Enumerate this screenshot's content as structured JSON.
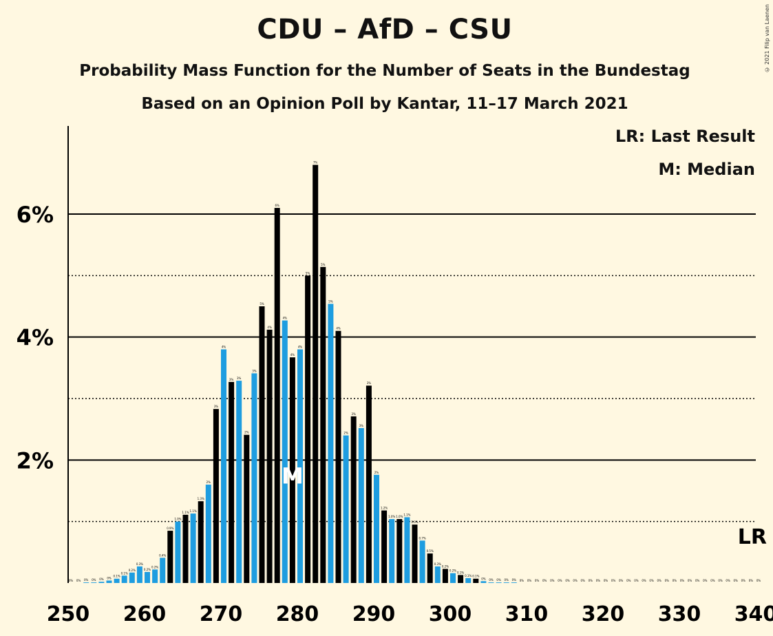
{
  "header": {
    "title": "CDU – AfD – CSU",
    "subtitle1": "Probability Mass Function for the Number of Seats in the Bundestag",
    "subtitle2": "Based on an Opinion Poll by Kantar, 11–17 March 2021",
    "copyright": "© 2021 Filip van Laenen"
  },
  "legend": {
    "lr": "LR: Last Result",
    "m": "M: Median"
  },
  "colors": {
    "background": "#FFF8E1",
    "bar_blue": "#1E9DE0",
    "bar_black": "#000000",
    "median_text": "#FFFFFF"
  },
  "chart_data": {
    "type": "bar",
    "title": "CDU – AfD – CSU",
    "x_ticks": [
      250,
      260,
      270,
      280,
      290,
      300,
      310,
      320,
      330,
      340
    ],
    "y_ticks": [
      {
        "value": 2,
        "label": "2%"
      },
      {
        "value": 4,
        "label": "4%"
      },
      {
        "value": 6,
        "label": "6%"
      }
    ],
    "dotted_gridlines": [
      1,
      3,
      5
    ],
    "xlim": [
      250,
      340
    ],
    "ylim": [
      0,
      7.4
    ],
    "median_seat": 279,
    "median_label": "M",
    "last_result_seat": 340,
    "last_result_label": "LR",
    "seats": [
      250,
      251,
      252,
      253,
      254,
      255,
      256,
      257,
      258,
      259,
      260,
      261,
      262,
      263,
      264,
      265,
      266,
      267,
      268,
      269,
      270,
      271,
      272,
      273,
      274,
      275,
      276,
      277,
      278,
      279,
      280,
      281,
      282,
      283,
      284,
      285,
      286,
      287,
      288,
      289,
      290,
      291,
      292,
      293,
      294,
      295,
      296,
      297,
      298,
      299,
      300,
      301,
      302,
      303,
      304,
      305,
      306,
      307,
      308,
      309,
      310,
      311,
      312,
      313,
      314,
      315,
      316,
      317,
      318,
      319,
      320,
      321,
      322,
      323,
      324,
      325,
      326,
      327,
      328,
      329,
      330,
      331,
      332,
      333,
      334,
      335,
      336,
      337,
      338,
      339,
      340
    ],
    "values": [
      0,
      0,
      0.01,
      0.01,
      0.02,
      0.04,
      0.07,
      0.12,
      0.17,
      0.27,
      0.18,
      0.22,
      0.41,
      0.85,
      1.0,
      1.11,
      1.13,
      1.33,
      1.6,
      2.83,
      3.8,
      3.27,
      3.29,
      2.41,
      3.41,
      4.5,
      4.12,
      6.1,
      4.27,
      3.67,
      3.8,
      5.0,
      6.8,
      5.14,
      4.54,
      4.1,
      2.4,
      2.71,
      2.52,
      3.21,
      1.76,
      1.18,
      1.04,
      1.04,
      1.07,
      0.95,
      0.69,
      0.48,
      0.27,
      0.23,
      0.16,
      0.13,
      0.08,
      0.07,
      0.03,
      0.01,
      0.01,
      0.01,
      0.01,
      0,
      0,
      0,
      0,
      0,
      0,
      0,
      0,
      0,
      0,
      0,
      0,
      0,
      0,
      0,
      0,
      0,
      0,
      0,
      0,
      0,
      0,
      0,
      0,
      0,
      0,
      0,
      0,
      0,
      0,
      0,
      0
    ],
    "bar_labels": [
      "0%",
      "0%",
      "0%",
      "0%",
      "0%",
      "0%",
      "0.1%",
      "0.1%",
      "0.2%",
      "0.3%",
      "0.2%",
      "0.2%",
      "0.4%",
      "0.9%",
      "1.0%",
      "1.1%",
      "1.1%",
      "1.3%",
      "2%",
      "3%",
      "4%",
      "3%",
      "3%",
      "2%",
      "3%",
      "5%",
      "4%",
      "6%",
      "4%",
      "4%",
      "4%",
      "5%",
      "7%",
      "5%",
      "5%",
      "4%",
      "2%",
      "3%",
      "3%",
      "3%",
      "2%",
      "1.2%",
      "1.0%",
      "1.0%",
      "1.1%",
      "1.0%",
      "0.7%",
      "0.5%",
      "0.3%",
      "0.2%",
      "0.2%",
      "0.1%",
      "0.1%",
      "0.1%",
      "0%",
      "0%",
      "0%",
      "0%",
      "0%",
      "0%",
      "0%",
      "0%",
      "0%",
      "0%",
      "0%",
      "0%",
      "0%",
      "0%",
      "0%",
      "0%",
      "0%",
      "0%",
      "0%",
      "0%",
      "0%",
      "0%",
      "0%",
      "0%",
      "0%",
      "0%",
      "0%",
      "0%",
      "0%",
      "0%",
      "0%",
      "0%",
      "0%",
      "0%",
      "0%",
      "0%",
      "0%"
    ]
  }
}
